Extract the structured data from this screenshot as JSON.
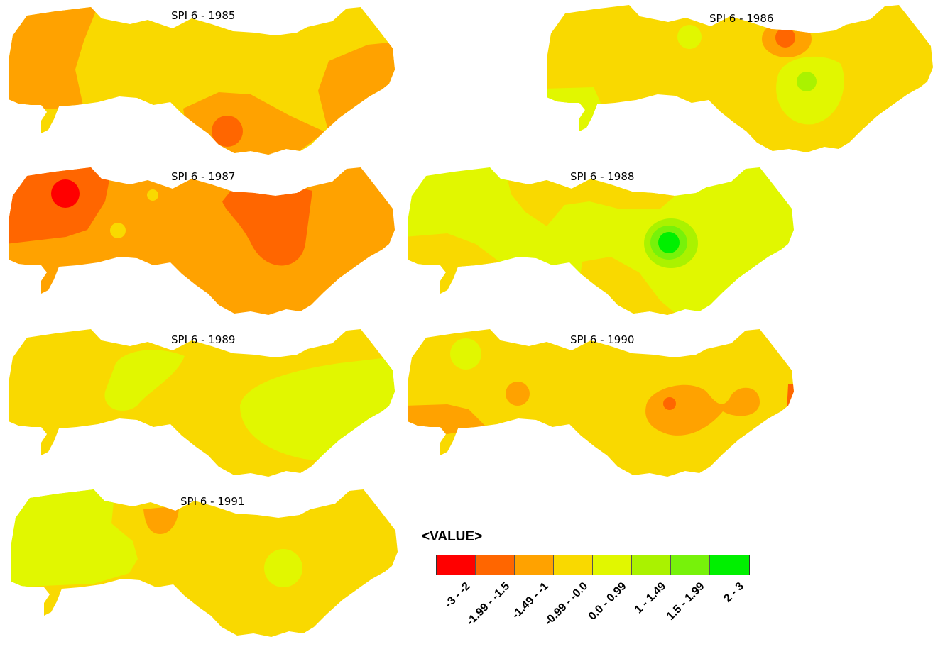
{
  "legend": {
    "title": "<VALUE>",
    "classes": [
      {
        "label": "-3 - -2",
        "color": "#ff0000"
      },
      {
        "label": "-1.99 - -1.5",
        "color": "#ff6600"
      },
      {
        "label": "-1.49 - -1",
        "color": "#ffa200"
      },
      {
        "label": "-0.99 - -0.0",
        "color": "#f9d900"
      },
      {
        "label": "0.0 - 0.99",
        "color": "#e1f700"
      },
      {
        "label": "1 - 1.49",
        "color": "#aaf200"
      },
      {
        "label": "1.5 - 1.99",
        "color": "#77f20a"
      },
      {
        "label": "2 - 3",
        "color": "#00f000"
      }
    ]
  },
  "maps": [
    {
      "title": "SPI 6 - 1985",
      "base_class": 3,
      "patches": [
        {
          "shape": "west-block",
          "class": 2
        },
        {
          "shape": "east-block",
          "class": 2
        },
        {
          "shape": "south-bulge",
          "class": 2
        },
        {
          "shape": "spot",
          "class": 1
        }
      ]
    },
    {
      "title": "SPI 6 - 1986",
      "base_class": 3,
      "patches": [
        {
          "shape": "small-spot",
          "class": 4
        },
        {
          "shape": "ring",
          "class": 2
        },
        {
          "shape": "ring-core",
          "class": 1
        },
        {
          "shape": "blob",
          "class": 4
        },
        {
          "shape": "blob-core",
          "class": 5
        },
        {
          "shape": "southwest-strip",
          "class": 4
        }
      ]
    },
    {
      "title": "SPI 6 - 1987",
      "base_class": 2,
      "patches": [
        {
          "shape": "west-block",
          "class": 1
        },
        {
          "shape": "west-core",
          "class": 0
        },
        {
          "shape": "small-spot",
          "class": 3
        },
        {
          "shape": "small-spot",
          "class": 3
        },
        {
          "shape": "central-lobe",
          "class": 1
        }
      ]
    },
    {
      "title": "SPI 6 - 1988",
      "base_class": 4,
      "patches": [
        {
          "shape": "north-band",
          "class": 3
        },
        {
          "shape": "southwest-band",
          "class": 3
        },
        {
          "shape": "south-lobe",
          "class": 3
        },
        {
          "shape": "ring",
          "class": 5
        },
        {
          "shape": "ring",
          "class": 6
        },
        {
          "shape": "core",
          "class": 7
        }
      ]
    },
    {
      "title": "SPI 6 - 1989",
      "base_class": 3,
      "patches": [
        {
          "shape": "blob",
          "class": 4
        },
        {
          "shape": "east-blob",
          "class": 4
        }
      ]
    },
    {
      "title": "SPI 6 - 1990",
      "base_class": 3,
      "patches": [
        {
          "shape": "small-spot",
          "class": 4
        },
        {
          "shape": "small-spot",
          "class": 2
        },
        {
          "shape": "southwest-band",
          "class": 2
        },
        {
          "shape": "east-blob",
          "class": 2
        },
        {
          "shape": "east-core",
          "class": 1
        },
        {
          "shape": "east-edge",
          "class": 1
        }
      ]
    },
    {
      "title": "SPI 6 - 1991",
      "base_class": 3,
      "patches": [
        {
          "shape": "west-block",
          "class": 4
        },
        {
          "shape": "north-spot",
          "class": 2
        },
        {
          "shape": "spot",
          "class": 4
        }
      ]
    }
  ]
}
